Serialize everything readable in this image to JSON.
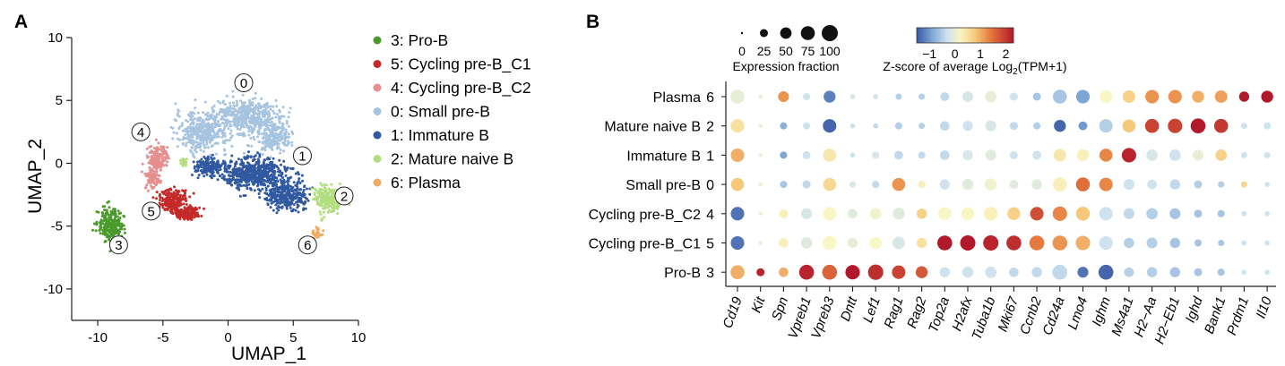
{
  "panels": {
    "a": "A",
    "b": "B"
  },
  "chart_data": [
    {
      "type": "scatter",
      "panel": "A",
      "xlabel": "UMAP_1",
      "ylabel": "UMAP_2",
      "xlim": [
        -12,
        10
      ],
      "ylim": [
        -12.5,
        10
      ],
      "xticks": [
        "-10",
        "-5",
        "0",
        "5",
        "10"
      ],
      "yticks": [
        "10",
        "5",
        "0",
        "-5",
        "-10"
      ],
      "legend_position": "right",
      "clusters": [
        {
          "id": "3",
          "name": "3: Pro-B",
          "color": "#4a9a2c",
          "label_at": [
            -8.4,
            -6.5
          ],
          "blobs": [
            [
              -9.0,
              -5.0,
              0.8,
              1.2,
              260
            ]
          ]
        },
        {
          "id": "5",
          "name": "5: Cycling pre-B_C1",
          "color": "#c42a2a",
          "label_at": [
            -5.9,
            -3.8
          ],
          "blobs": [
            [
              -4.3,
              -3.0,
              1.0,
              0.9,
              200
            ],
            [
              -3.2,
              -4.0,
              0.9,
              0.5,
              150
            ]
          ]
        },
        {
          "id": "4",
          "name": "4: Cycling pre-B_C2",
          "color": "#e58f8f",
          "label_at": [
            -6.7,
            2.5
          ],
          "blobs": [
            [
              -5.5,
              0.5,
              0.7,
              0.9,
              140
            ],
            [
              -5.8,
              -1.2,
              0.5,
              0.8,
              100
            ]
          ]
        },
        {
          "id": "0",
          "name": "0: Small pre-B",
          "color": "#a6c4df",
          "label_at": [
            1.2,
            6.4
          ],
          "blobs": [
            [
              -2.0,
              2.5,
              1.8,
              1.4,
              380
            ],
            [
              1.5,
              3.7,
              2.2,
              1.3,
              480
            ],
            [
              3.5,
              2.0,
              1.2,
              1.0,
              200
            ]
          ]
        },
        {
          "id": "1",
          "name": "1: Immature B",
          "color": "#3059a1",
          "label_at": [
            5.7,
            0.6
          ],
          "blobs": [
            [
              2.0,
              -0.8,
              2.3,
              1.1,
              560
            ],
            [
              4.5,
              -2.6,
              1.4,
              1.0,
              320
            ],
            [
              -1.5,
              -0.3,
              1.0,
              0.6,
              160
            ]
          ]
        },
        {
          "id": "2",
          "name": "2: Mature naive B",
          "color": "#b2de80",
          "label_at": [
            8.9,
            -2.6
          ],
          "blobs": [
            [
              7.6,
              -2.8,
              0.9,
              0.9,
              230
            ],
            [
              -3.4,
              0.1,
              0.3,
              0.3,
              25
            ]
          ]
        },
        {
          "id": "6",
          "name": "6: Plasma",
          "color": "#efaa63",
          "label_at": [
            6.1,
            -6.5
          ],
          "blobs": [
            [
              6.8,
              -5.5,
              0.4,
              0.5,
              30
            ]
          ]
        }
      ]
    },
    {
      "type": "heatmap",
      "panel": "B",
      "title": "",
      "size_legend": {
        "title": "Expression fraction",
        "values": [
          0,
          25,
          50,
          75,
          100
        ]
      },
      "color_legend": {
        "title": "Z-score of average Log",
        "subscript": "2",
        "title_suffix": "(TPM+1)",
        "range": [
          -1.5,
          2.3
        ],
        "ticks": [
          "−1",
          "0",
          "1",
          "2"
        ],
        "tick_values": [
          -1,
          0,
          1,
          2
        ]
      },
      "rows": [
        {
          "name": "Plasma",
          "id": "6"
        },
        {
          "name": "Mature naive B",
          "id": "2"
        },
        {
          "name": "Immature B",
          "id": "1"
        },
        {
          "name": "Small pre-B",
          "id": "0"
        },
        {
          "name": "Cycling pre-B_C2",
          "id": "4"
        },
        {
          "name": "Cycling pre-B_C1",
          "id": "5"
        },
        {
          "name": "Pro-B",
          "id": "3"
        }
      ],
      "genes": [
        "Cd19",
        "Kit",
        "Spn",
        "Vpreb1",
        "Vpreb3",
        "Dntt",
        "Lef1",
        "Rag1",
        "Rag2",
        "Top2a",
        "H2afx",
        "Tuba1b",
        "Mki67",
        "Ccnb2",
        "Cd24a",
        "Lmo4",
        "Ighm",
        "Ms4a1",
        "H2−Aa",
        "H2−Eb1",
        "Ighd",
        "Bank1",
        "Prdm1",
        "Il10"
      ],
      "fraction": [
        [
          75,
          5,
          45,
          20,
          55,
          10,
          10,
          15,
          15,
          30,
          45,
          50,
          25,
          25,
          75,
          70,
          60,
          60,
          70,
          70,
          55,
          60,
          40,
          55
        ],
        [
          70,
          5,
          20,
          20,
          70,
          10,
          10,
          20,
          15,
          35,
          40,
          45,
          25,
          20,
          55,
          30,
          70,
          65,
          75,
          80,
          85,
          75,
          15,
          20
        ],
        [
          70,
          5,
          20,
          25,
          65,
          10,
          20,
          30,
          20,
          35,
          40,
          45,
          25,
          30,
          60,
          55,
          65,
          80,
          50,
          50,
          45,
          50,
          15,
          15
        ],
        [
          65,
          5,
          20,
          25,
          65,
          15,
          20,
          65,
          20,
          40,
          45,
          55,
          30,
          40,
          75,
          75,
          70,
          45,
          35,
          40,
          25,
          15,
          15,
          10
        ],
        [
          70,
          5,
          30,
          45,
          70,
          35,
          50,
          55,
          40,
          65,
          65,
          70,
          65,
          70,
          80,
          75,
          70,
          45,
          50,
          45,
          25,
          20,
          10,
          10
        ],
        [
          70,
          5,
          35,
          50,
          75,
          40,
          55,
          60,
          40,
          85,
          90,
          90,
          85,
          85,
          85,
          80,
          70,
          40,
          45,
          40,
          20,
          15,
          10,
          10
        ],
        [
          75,
          25,
          35,
          85,
          85,
          80,
          90,
          70,
          55,
          40,
          45,
          50,
          35,
          40,
          85,
          45,
          85,
          35,
          40,
          40,
          25,
          20,
          10,
          10
        ]
      ],
      "zscore": [
        [
          0.0,
          0,
          1.2,
          -0.3,
          -1.2,
          -0.2,
          -0.3,
          -0.5,
          -0.5,
          -0.4,
          -0.2,
          0.0,
          -0.3,
          -0.6,
          -0.6,
          -0.9,
          0.2,
          0.7,
          1.2,
          1.2,
          1.0,
          1.1,
          2.3,
          2.3
        ],
        [
          0.5,
          0,
          -0.8,
          -0.3,
          -1.4,
          -0.3,
          -0.4,
          -0.5,
          -0.5,
          -0.4,
          -0.3,
          -0.2,
          -0.4,
          -0.5,
          -1.4,
          -1.0,
          -0.5,
          0.8,
          1.9,
          1.9,
          2.3,
          2.0,
          -0.3,
          -0.3
        ],
        [
          1.0,
          0,
          -0.9,
          -0.3,
          0.4,
          -0.3,
          -0.2,
          -0.4,
          -0.4,
          -0.4,
          -0.2,
          -0.1,
          -0.3,
          -0.3,
          0.4,
          0.3,
          1.3,
          2.2,
          -0.2,
          -0.3,
          0.0,
          0.7,
          -0.3,
          -0.3
        ],
        [
          0.8,
          0,
          -0.6,
          -0.4,
          0.6,
          -0.2,
          -0.4,
          1.2,
          0.3,
          -0.3,
          -0.1,
          0.1,
          -0.1,
          -0.1,
          0.3,
          1.5,
          1.3,
          -0.3,
          -0.3,
          -0.4,
          -0.5,
          -0.5,
          0.6,
          -0.3
        ],
        [
          -1.3,
          0,
          0.3,
          -0.2,
          0.2,
          -0.1,
          0.1,
          -0.1,
          0.7,
          0.2,
          0.2,
          0.3,
          0.7,
          1.8,
          1.3,
          0.8,
          -0.3,
          -0.4,
          -0.5,
          -0.6,
          -0.6,
          -0.6,
          -0.3,
          -0.3
        ],
        [
          -1.3,
          0,
          0.3,
          -0.1,
          0.2,
          0.0,
          0.2,
          -0.2,
          0.5,
          2.3,
          2.3,
          2.2,
          2.1,
          1.4,
          1.2,
          1.0,
          -0.3,
          -0.5,
          -0.5,
          -0.6,
          -0.6,
          -0.6,
          -0.3,
          -0.3
        ],
        [
          1.0,
          2.2,
          1.0,
          2.2,
          1.6,
          2.3,
          2.1,
          1.9,
          1.7,
          -0.3,
          -0.3,
          -0.3,
          -0.4,
          -0.4,
          -0.4,
          -1.3,
          -1.4,
          -0.5,
          -0.5,
          -0.6,
          -0.6,
          -0.6,
          -0.3,
          -0.3
        ]
      ]
    }
  ]
}
